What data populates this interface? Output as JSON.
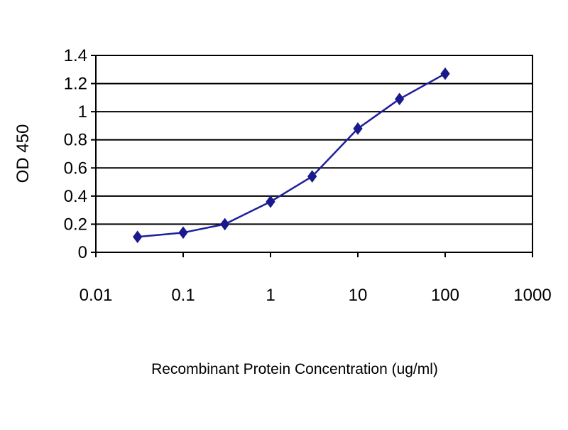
{
  "chart_data": {
    "type": "line",
    "title": "",
    "xlabel": "Recombinant Protein Concentration (ug/ml)",
    "ylabel": "OD 450",
    "x_scale": "log",
    "xlim": [
      0.01,
      1000
    ],
    "ylim": [
      0,
      1.4
    ],
    "x_ticks": [
      0.01,
      0.1,
      1,
      10,
      100,
      1000
    ],
    "x_tick_labels": [
      "0.01",
      "0.1",
      "1",
      "10",
      "100",
      "1000"
    ],
    "y_ticks": [
      0,
      0.2,
      0.4,
      0.6,
      0.8,
      1,
      1.2,
      1.4
    ],
    "y_tick_labels": [
      "0",
      "0.2",
      "0.4",
      "0.6",
      "0.8",
      "1",
      "1.2",
      "1.4"
    ],
    "grid": "horizontal",
    "legend": "none",
    "series": [
      {
        "x": [
          0.03,
          0.1,
          0.3,
          1,
          3,
          10,
          30,
          100
        ],
        "y": [
          0.11,
          0.14,
          0.2,
          0.36,
          0.54,
          0.88,
          1.09,
          1.27
        ]
      }
    ],
    "colors": {
      "series": "#1f1f9a",
      "marker": "#1a1a8c",
      "plot_border": "#000000",
      "gridline": "#000000"
    }
  }
}
